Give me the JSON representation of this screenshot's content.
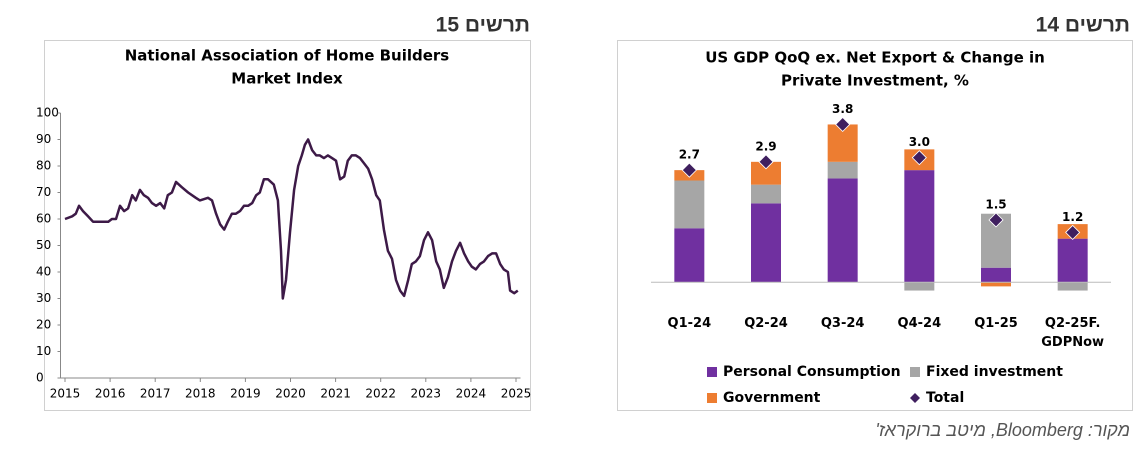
{
  "chart_data": [
    {
      "type": "line",
      "figure_label": "תרשים 15",
      "title": [
        "National Association of Home Builders",
        "Market Index"
      ],
      "color": "#3d1a47",
      "x": [
        2015.0,
        2015.16,
        2015.24,
        2015.31,
        2015.4,
        2015.51,
        2015.62,
        2015.78,
        2015.96,
        2016.04,
        2016.13,
        2016.22,
        2016.31,
        2016.4,
        2016.49,
        2016.57,
        2016.66,
        2016.75,
        2016.84,
        2016.93,
        2017.02,
        2017.11,
        2017.2,
        2017.28,
        2017.37,
        2017.46,
        2017.59,
        2017.73,
        2017.9,
        2017.99,
        2018.17,
        2018.26,
        2018.35,
        2018.44,
        2018.53,
        2018.61,
        2018.7,
        2018.79,
        2018.88,
        2018.97,
        2019.06,
        2019.15,
        2019.24,
        2019.32,
        2019.41,
        2019.5,
        2019.63,
        2019.72,
        2019.79,
        2019.83,
        2019.9,
        2019.99,
        2020.08,
        2020.17,
        2020.25,
        2020.32,
        2020.39,
        2020.48,
        2020.57,
        2020.65,
        2020.74,
        2020.83,
        2020.92,
        2021.01,
        2021.1,
        2021.19,
        2021.27,
        2021.36,
        2021.45,
        2021.54,
        2021.63,
        2021.72,
        2021.81,
        2021.9,
        2021.98,
        2022.07,
        2022.16,
        2022.25,
        2022.34,
        2022.43,
        2022.52,
        2022.61,
        2022.69,
        2022.78,
        2022.87,
        2022.96,
        2023.05,
        2023.14,
        2023.23,
        2023.31,
        2023.4,
        2023.49,
        2023.58,
        2023.67,
        2023.76,
        2023.85,
        2023.94,
        2024.02,
        2024.11,
        2024.2,
        2024.29,
        2024.38,
        2024.47,
        2024.56,
        2024.65,
        2024.73,
        2024.82,
        2024.87,
        2024.96,
        2025.04
      ],
      "values": [
        60,
        61,
        62,
        65,
        63,
        61,
        59,
        59,
        59,
        60,
        60,
        65,
        63,
        64,
        69,
        67,
        71,
        69,
        68,
        66,
        65,
        66,
        64,
        69,
        70,
        74,
        72,
        70,
        68,
        67,
        68,
        67,
        62,
        58,
        56,
        59,
        62,
        62,
        63,
        65,
        65,
        66,
        69,
        70,
        75,
        75,
        73,
        67,
        48,
        30,
        37,
        55,
        71,
        80,
        84,
        88,
        90,
        86,
        84,
        84,
        83,
        84,
        83,
        82,
        75,
        76,
        82,
        84,
        84,
        83,
        81,
        79,
        75,
        69,
        67,
        56,
        48,
        45,
        37,
        33,
        31,
        37,
        43,
        44,
        46,
        52,
        55,
        52,
        44,
        41,
        34,
        38,
        44,
        48,
        51,
        47,
        44,
        42,
        41,
        43,
        44,
        46,
        47,
        47,
        43,
        41,
        40,
        33,
        32,
        33
      ],
      "xlim": [
        2014.9,
        2025.1
      ],
      "xticks": [
        2015,
        2016,
        2017,
        2018,
        2019,
        2020,
        2021,
        2022,
        2023,
        2024,
        2025
      ],
      "ylim": [
        0,
        100
      ],
      "yticks": [
        0,
        10,
        20,
        30,
        40,
        50,
        60,
        70,
        80,
        90,
        100
      ],
      "grid": false
    },
    {
      "type": "bar",
      "stacked": true,
      "figure_label": "תרשים 14",
      "title": [
        "US GDP QoQ ex. Net Export & Change in",
        "Private Investment, %"
      ],
      "categories": [
        "Q1-24",
        "Q2-24",
        "Q3-24",
        "Q4-24",
        "Q1-25",
        "Q2-25F.\nGDPNow"
      ],
      "series": [
        {
          "name": "Personal Consumption",
          "color": "#7030a0",
          "values": [
            1.3,
            1.9,
            2.5,
            2.7,
            0.35,
            1.05
          ]
        },
        {
          "name": "Fixed investment",
          "color": "#a6a6a6",
          "values": [
            1.15,
            0.45,
            0.4,
            -0.2,
            1.3,
            -0.2
          ]
        },
        {
          "name": "Government",
          "color": "#ed7d31",
          "values": [
            0.25,
            0.55,
            0.9,
            0.5,
            -0.1,
            0.35
          ]
        },
        {
          "name": "Total",
          "color": "#3f1f5f",
          "marker": "diamond",
          "values": [
            2.7,
            2.9,
            3.8,
            3.0,
            1.5,
            1.2
          ],
          "value_labels": [
            "2.7",
            "2.9",
            "3.8",
            "3.0",
            "1.5",
            "1.2"
          ]
        }
      ],
      "ylim": [
        -0.5,
        4.1
      ],
      "legend": "bottom"
    }
  ],
  "source": "מקור: Bloomberg, מיטב ברוקראז'"
}
